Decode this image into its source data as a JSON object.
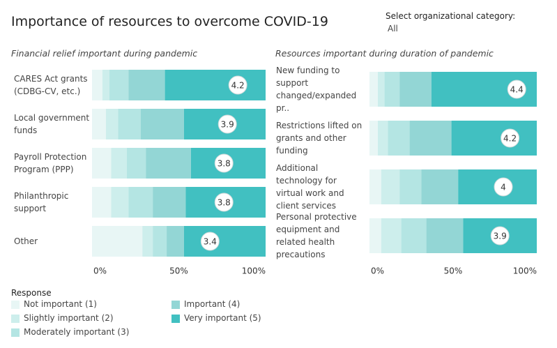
{
  "header": {
    "title": "Importance of resources to overcome COVID-19"
  },
  "filter": {
    "label": "Select organizational category:",
    "value": "All"
  },
  "legend": {
    "title": "Response"
  },
  "chart_data": [
    {
      "type": "stacked-bar-100",
      "title": "Financial relief important during pandemic",
      "categories": [
        "CARES Act grants (CDBG-CV, etc.)",
        "Local government funds",
        "Payroll Protection Program (PPP)",
        "Philanthropic support",
        "Other"
      ],
      "series": [
        {
          "name": "Not important (1)",
          "color": "#e8f6f5",
          "values": [
            6,
            8,
            11,
            11,
            29
          ]
        },
        {
          "name": "Slightly important (2)",
          "color": "#cdeeec",
          "values": [
            4,
            7,
            9,
            10,
            6
          ]
        },
        {
          "name": "Moderately important (3)",
          "color": "#b4e5e3",
          "values": [
            11,
            13,
            11,
            14,
            8
          ]
        },
        {
          "name": "Important (4)",
          "color": "#93d6d5",
          "values": [
            21,
            25,
            26,
            19,
            10
          ]
        },
        {
          "name": "Very important (5)",
          "color": "#41c0c1",
          "values": [
            58,
            47,
            43,
            46,
            47
          ]
        }
      ],
      "mean_scores": [
        4.2,
        3.9,
        3.8,
        3.8,
        3.4
      ],
      "xlim": [
        0,
        100
      ],
      "xticks": [
        {
          "value": 0,
          "label": "0%"
        },
        {
          "value": 50,
          "label": "50%"
        },
        {
          "value": 100,
          "label": "100%"
        }
      ]
    },
    {
      "type": "stacked-bar-100",
      "title": "Resources important during duration of pandemic",
      "categories": [
        "New funding to support changed/expanded pr..",
        "Restrictions lifted on grants and other funding",
        "Additional technology for virtual work and client services",
        "Personal protective equipment and related health precautions"
      ],
      "series": [
        {
          "name": "Not important (1)",
          "color": "#e8f6f5",
          "values": [
            5,
            5,
            7,
            7
          ]
        },
        {
          "name": "Slightly important (2)",
          "color": "#cdeeec",
          "values": [
            4,
            6,
            11,
            12
          ]
        },
        {
          "name": "Moderately important (3)",
          "color": "#b4e5e3",
          "values": [
            9,
            13,
            13,
            15
          ]
        },
        {
          "name": "Important (4)",
          "color": "#93d6d5",
          "values": [
            19,
            25,
            22,
            22
          ]
        },
        {
          "name": "Very important (5)",
          "color": "#41c0c1",
          "values": [
            63,
            51,
            47,
            44
          ]
        }
      ],
      "mean_scores": [
        4.4,
        4.2,
        4.0,
        3.9
      ],
      "xlim": [
        0,
        100
      ],
      "xticks": [
        {
          "value": 0,
          "label": "0%"
        },
        {
          "value": 50,
          "label": "50%"
        },
        {
          "value": 100,
          "label": "100%"
        }
      ]
    }
  ]
}
